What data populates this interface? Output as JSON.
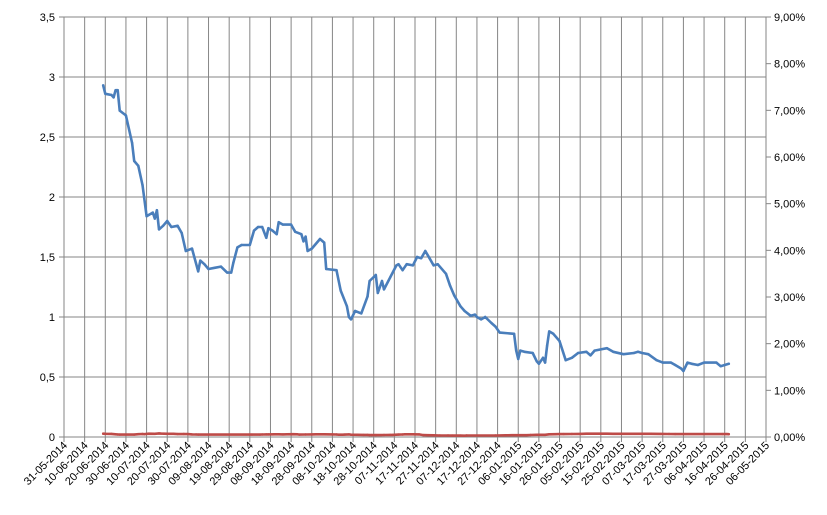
{
  "chart_data": {
    "type": "line",
    "title": "",
    "xlabel": "",
    "ylabel": "",
    "grid": true,
    "legend": "none",
    "x_axis": {
      "type": "date",
      "range": [
        "2014-05-31",
        "2015-05-06"
      ],
      "tick_labels": [
        "31-05-2014",
        "10-06-2014",
        "20-06-2014",
        "30-06-2014",
        "10-07-2014",
        "20-07-2014",
        "30-07-2014",
        "09-08-2014",
        "19-08-2014",
        "29-08-2014",
        "08-09-2014",
        "18-09-2014",
        "28-09-2014",
        "08-10-2014",
        "18-10-2014",
        "28-10-2014",
        "07-11-2014",
        "17-11-2014",
        "27-11-2014",
        "07-12-2014",
        "17-12-2014",
        "27-12-2014",
        "06-01-2015",
        "16-01-2015",
        "26-01-2015",
        "05-02-2015",
        "15-02-2015",
        "25-02-2015",
        "07-03-2015",
        "17-03-2015",
        "27-03-2015",
        "06-04-2015",
        "16-04-2015",
        "26-04-2015",
        "06-05-2015"
      ]
    },
    "y_axis_left": {
      "range": [
        0,
        3.5
      ],
      "tick_labels": [
        "0",
        "0,5",
        "1",
        "1,5",
        "2",
        "2,5",
        "3",
        "3,5"
      ]
    },
    "y_axis_right": {
      "range": [
        0,
        9
      ],
      "tick_labels": [
        "0,00%",
        "1,00%",
        "2,00%",
        "3,00%",
        "4,00%",
        "5,00%",
        "6,00%",
        "7,00%",
        "8,00%",
        "9,00%"
      ]
    },
    "series": [
      {
        "axis": "left",
        "color": "#4a7ebb",
        "points": [
          [
            "2014-06-19",
            2.93
          ],
          [
            "2014-06-20",
            2.86
          ],
          [
            "2014-06-23",
            2.85
          ],
          [
            "2014-06-24",
            2.83
          ],
          [
            "2014-06-25",
            2.89
          ],
          [
            "2014-06-26",
            2.89
          ],
          [
            "2014-06-27",
            2.72
          ],
          [
            "2014-06-30",
            2.68
          ],
          [
            "2014-07-03",
            2.45
          ],
          [
            "2014-07-04",
            2.3
          ],
          [
            "2014-07-06",
            2.26
          ],
          [
            "2014-07-08",
            2.1
          ],
          [
            "2014-07-10",
            1.84
          ],
          [
            "2014-07-11",
            1.85
          ],
          [
            "2014-07-13",
            1.87
          ],
          [
            "2014-07-14",
            1.82
          ],
          [
            "2014-07-15",
            1.89
          ],
          [
            "2014-07-16",
            1.73
          ],
          [
            "2014-07-18",
            1.76
          ],
          [
            "2014-07-20",
            1.8
          ],
          [
            "2014-07-22",
            1.75
          ],
          [
            "2014-07-25",
            1.76
          ],
          [
            "2014-07-27",
            1.7
          ],
          [
            "2014-07-29",
            1.55
          ],
          [
            "2014-08-01",
            1.57
          ],
          [
            "2014-08-04",
            1.38
          ],
          [
            "2014-08-05",
            1.47
          ],
          [
            "2014-08-07",
            1.44
          ],
          [
            "2014-08-09",
            1.4
          ],
          [
            "2014-08-12",
            1.41
          ],
          [
            "2014-08-15",
            1.42
          ],
          [
            "2014-08-18",
            1.37
          ],
          [
            "2014-08-20",
            1.37
          ],
          [
            "2014-08-21",
            1.45
          ],
          [
            "2014-08-23",
            1.58
          ],
          [
            "2014-08-25",
            1.6
          ],
          [
            "2014-08-29",
            1.6
          ],
          [
            "2014-08-31",
            1.72
          ],
          [
            "2014-09-02",
            1.75
          ],
          [
            "2014-09-04",
            1.75
          ],
          [
            "2014-09-06",
            1.66
          ],
          [
            "2014-09-07",
            1.74
          ],
          [
            "2014-09-09",
            1.72
          ],
          [
            "2014-09-11",
            1.69
          ],
          [
            "2014-09-12",
            1.79
          ],
          [
            "2014-09-14",
            1.77
          ],
          [
            "2014-09-18",
            1.77
          ],
          [
            "2014-09-20",
            1.71
          ],
          [
            "2014-09-23",
            1.69
          ],
          [
            "2014-09-24",
            1.63
          ],
          [
            "2014-09-25",
            1.67
          ],
          [
            "2014-09-26",
            1.55
          ],
          [
            "2014-09-28",
            1.57
          ],
          [
            "2014-10-02",
            1.65
          ],
          [
            "2014-10-04",
            1.62
          ],
          [
            "2014-10-05",
            1.4
          ],
          [
            "2014-10-10",
            1.39
          ],
          [
            "2014-10-12",
            1.22
          ],
          [
            "2014-10-15",
            1.09
          ],
          [
            "2014-10-16",
            1.0
          ],
          [
            "2014-10-17",
            0.98
          ],
          [
            "2014-10-19",
            1.05
          ],
          [
            "2014-10-22",
            1.03
          ],
          [
            "2014-10-25",
            1.17
          ],
          [
            "2014-10-26",
            1.3
          ],
          [
            "2014-10-29",
            1.35
          ],
          [
            "2014-10-30",
            1.2
          ],
          [
            "2014-11-01",
            1.3
          ],
          [
            "2014-11-02",
            1.23
          ],
          [
            "2014-11-05",
            1.33
          ],
          [
            "2014-11-08",
            1.43
          ],
          [
            "2014-11-09",
            1.44
          ],
          [
            "2014-11-11",
            1.39
          ],
          [
            "2014-11-13",
            1.44
          ],
          [
            "2014-11-16",
            1.43
          ],
          [
            "2014-11-18",
            1.5
          ],
          [
            "2014-11-20",
            1.49
          ],
          [
            "2014-11-22",
            1.55
          ],
          [
            "2014-11-24",
            1.49
          ],
          [
            "2014-11-26",
            1.43
          ],
          [
            "2014-11-28",
            1.44
          ],
          [
            "2014-12-02",
            1.36
          ],
          [
            "2014-12-04",
            1.26
          ],
          [
            "2014-12-06",
            1.18
          ],
          [
            "2014-12-09",
            1.09
          ],
          [
            "2014-12-11",
            1.05
          ],
          [
            "2014-12-14",
            1.01
          ],
          [
            "2014-12-16",
            1.02
          ],
          [
            "2014-12-17",
            1.0
          ],
          [
            "2014-12-19",
            0.98
          ],
          [
            "2014-12-21",
            1.0
          ],
          [
            "2014-12-24",
            0.95
          ],
          [
            "2014-12-26",
            0.92
          ],
          [
            "2014-12-28",
            0.87
          ],
          [
            "2015-01-04",
            0.86
          ],
          [
            "2015-01-05",
            0.72
          ],
          [
            "2015-01-06",
            0.65
          ],
          [
            "2015-01-07",
            0.72
          ],
          [
            "2015-01-09",
            0.71
          ],
          [
            "2015-01-13",
            0.7
          ],
          [
            "2015-01-15",
            0.63
          ],
          [
            "2015-01-16",
            0.61
          ],
          [
            "2015-01-18",
            0.66
          ],
          [
            "2015-01-19",
            0.62
          ],
          [
            "2015-01-20",
            0.76
          ],
          [
            "2015-01-21",
            0.88
          ],
          [
            "2015-01-23",
            0.86
          ],
          [
            "2015-01-26",
            0.8
          ],
          [
            "2015-01-29",
            0.64
          ],
          [
            "2015-02-01",
            0.66
          ],
          [
            "2015-02-04",
            0.7
          ],
          [
            "2015-02-08",
            0.71
          ],
          [
            "2015-02-10",
            0.68
          ],
          [
            "2015-02-12",
            0.72
          ],
          [
            "2015-02-15",
            0.73
          ],
          [
            "2015-02-18",
            0.74
          ],
          [
            "2015-02-21",
            0.71
          ],
          [
            "2015-02-26",
            0.69
          ],
          [
            "2015-03-03",
            0.7
          ],
          [
            "2015-03-05",
            0.71
          ],
          [
            "2015-03-07",
            0.7
          ],
          [
            "2015-03-10",
            0.69
          ],
          [
            "2015-03-14",
            0.64
          ],
          [
            "2015-03-17",
            0.62
          ],
          [
            "2015-03-21",
            0.62
          ],
          [
            "2015-03-23",
            0.6
          ],
          [
            "2015-03-26",
            0.57
          ],
          [
            "2015-03-27",
            0.55
          ],
          [
            "2015-03-29",
            0.62
          ],
          [
            "2015-03-31",
            0.61
          ],
          [
            "2015-04-03",
            0.6
          ],
          [
            "2015-04-06",
            0.62
          ],
          [
            "2015-04-12",
            0.62
          ],
          [
            "2015-04-14",
            0.59
          ],
          [
            "2015-04-16",
            0.6
          ],
          [
            "2015-04-18",
            0.61
          ]
        ]
      },
      {
        "axis": "right",
        "color": "#be4b48",
        "points": [
          [
            "2014-06-19",
            0.0705
          ],
          [
            "2014-06-20",
            0.0685
          ],
          [
            "2014-06-23",
            0.0665
          ],
          [
            "2014-06-25",
            0.058
          ],
          [
            "2014-06-26",
            0.0535
          ],
          [
            "2014-06-27",
            0.0508
          ],
          [
            "2014-07-04",
            0.0508
          ],
          [
            "2014-07-06",
            0.06
          ],
          [
            "2014-07-08",
            0.0645
          ],
          [
            "2014-07-09",
            0.0595
          ],
          [
            "2014-07-10",
            0.067
          ],
          [
            "2014-07-11",
            0.0712
          ],
          [
            "2014-07-14",
            0.0692
          ],
          [
            "2014-07-16",
            0.078
          ],
          [
            "2014-07-17",
            0.072
          ],
          [
            "2014-07-20",
            0.0692
          ],
          [
            "2014-07-22",
            0.0687
          ],
          [
            "2014-07-23",
            0.068
          ],
          [
            "2014-07-25",
            0.0625
          ],
          [
            "2014-07-28",
            0.0645
          ],
          [
            "2014-07-30",
            0.0617
          ],
          [
            "2014-08-01",
            0.0553
          ],
          [
            "2014-08-03",
            0.0527
          ],
          [
            "2014-08-04",
            0.0512
          ],
          [
            "2014-08-29",
            0.0512
          ],
          [
            "2014-08-30",
            0.0522
          ],
          [
            "2014-09-03",
            0.0522
          ],
          [
            "2014-09-04",
            0.0545
          ],
          [
            "2014-09-06",
            0.0555
          ],
          [
            "2014-09-07",
            0.0557
          ],
          [
            "2014-09-10",
            0.0577
          ],
          [
            "2014-09-12",
            0.057
          ],
          [
            "2014-09-14",
            0.0554
          ],
          [
            "2014-09-16",
            0.0574
          ],
          [
            "2014-09-19",
            0.0598
          ],
          [
            "2014-09-21",
            0.0587
          ],
          [
            "2014-09-22",
            0.0525
          ],
          [
            "2014-09-25",
            0.0541
          ],
          [
            "2014-09-28",
            0.0556
          ],
          [
            "2014-09-30",
            0.0577
          ],
          [
            "2014-10-04",
            0.0587
          ],
          [
            "2014-10-08",
            0.056
          ],
          [
            "2014-10-10",
            0.0535
          ],
          [
            "2014-10-11",
            0.0495
          ],
          [
            "2014-10-13",
            0.0495
          ],
          [
            "2014-10-14",
            0.0508
          ],
          [
            "2014-10-16",
            0.0547
          ],
          [
            "2014-10-17",
            0.0485
          ],
          [
            "2014-10-20",
            0.0465
          ],
          [
            "2014-10-23",
            0.046
          ],
          [
            "2014-10-25",
            0.0453
          ],
          [
            "2014-10-26",
            0.041
          ],
          [
            "2014-10-27",
            0.0408
          ],
          [
            "2014-10-29",
            0.0415
          ],
          [
            "2014-11-02",
            0.0432
          ],
          [
            "2014-11-05",
            0.044
          ],
          [
            "2014-11-06",
            0.046
          ],
          [
            "2014-11-09",
            0.0509
          ],
          [
            "2014-11-11",
            0.0545
          ],
          [
            "2014-11-12",
            0.0578
          ],
          [
            "2014-11-16",
            0.0578
          ],
          [
            "2014-11-19",
            0.0563
          ],
          [
            "2014-11-21",
            0.0398
          ],
          [
            "2014-11-23",
            0.0395
          ],
          [
            "2014-11-26",
            0.0363
          ],
          [
            "2014-11-29",
            0.0319
          ],
          [
            "2014-12-03",
            0.0319
          ],
          [
            "2014-12-05",
            0.031
          ],
          [
            "2014-12-09",
            0.03
          ],
          [
            "2014-12-11",
            0.028
          ],
          [
            "2014-12-12",
            0.0328
          ],
          [
            "2014-12-26",
            0.0328
          ],
          [
            "2014-12-31",
            0.0364
          ],
          [
            "2015-01-03",
            0.0378
          ],
          [
            "2015-01-10",
            0.0378
          ],
          [
            "2015-01-12",
            0.043
          ],
          [
            "2015-01-15",
            0.0462
          ],
          [
            "2015-01-19",
            0.0462
          ],
          [
            "2015-01-21",
            0.0575
          ],
          [
            "2015-01-24",
            0.059
          ],
          [
            "2015-01-26",
            0.0625
          ],
          [
            "2015-01-28",
            0.0622
          ],
          [
            "2015-02-01",
            0.0653
          ],
          [
            "2015-02-05",
            0.0675
          ],
          [
            "2015-02-08",
            0.0703
          ],
          [
            "2015-02-11",
            0.0712
          ],
          [
            "2015-02-18",
            0.0712
          ],
          [
            "2015-02-21",
            0.0695
          ],
          [
            "2015-03-06",
            0.0695
          ],
          [
            "2015-03-11",
            0.068
          ],
          [
            "2015-03-16",
            0.066
          ],
          [
            "2015-03-20",
            0.0644
          ],
          [
            "2015-03-23",
            0.0625
          ],
          [
            "2015-04-15",
            0.0625
          ],
          [
            "2015-04-17",
            0.0615
          ],
          [
            "2015-04-18",
            0.06
          ]
        ]
      }
    ]
  }
}
